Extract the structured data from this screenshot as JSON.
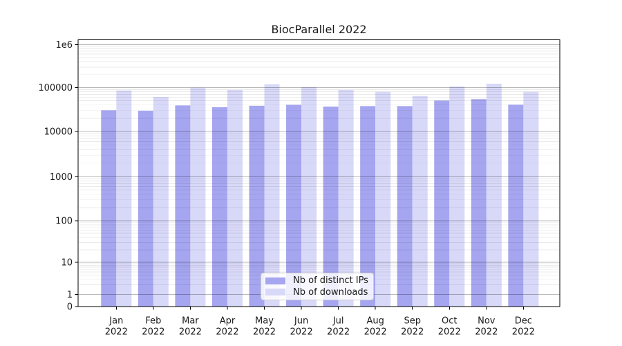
{
  "chart_data": {
    "type": "bar",
    "title": "BiocParallel 2022",
    "categories": [
      "Jan",
      "Feb",
      "Mar",
      "Apr",
      "May",
      "Jun",
      "Jul",
      "Aug",
      "Sep",
      "Oct",
      "Nov",
      "Dec"
    ],
    "category_year": "2022",
    "series": [
      {
        "name": "Nb of distinct IPs",
        "color": "#a5a5f0",
        "values": [
          30400,
          29700,
          39200,
          35600,
          38500,
          40500,
          36900,
          37800,
          37800,
          50600,
          54400,
          40700
        ]
      },
      {
        "name": "Nb of downloads",
        "color": "#d8d8f8",
        "values": [
          85900,
          61300,
          99300,
          88100,
          119400,
          103000,
          88100,
          79900,
          64300,
          105700,
          122600,
          79900
        ]
      }
    ],
    "y_ticks": {
      "values": [
        0,
        1,
        10,
        100,
        1000,
        10000,
        100000,
        1000000
      ],
      "labels": [
        "0",
        "1",
        "10",
        "100",
        "1000",
        "10000",
        "100000",
        "1e6"
      ]
    },
    "yscale": "log-with-zero",
    "ylim": [
      0,
      1400000
    ],
    "xlabel": "",
    "ylabel": "",
    "grid": "horizontal-major-and-log-minor",
    "legend_position": "lower center",
    "colors": {
      "major_grid": "#b7b7b7",
      "minor_grid": "#e9e9e9",
      "axis": "#000000",
      "text": "#1a1a1a"
    }
  }
}
